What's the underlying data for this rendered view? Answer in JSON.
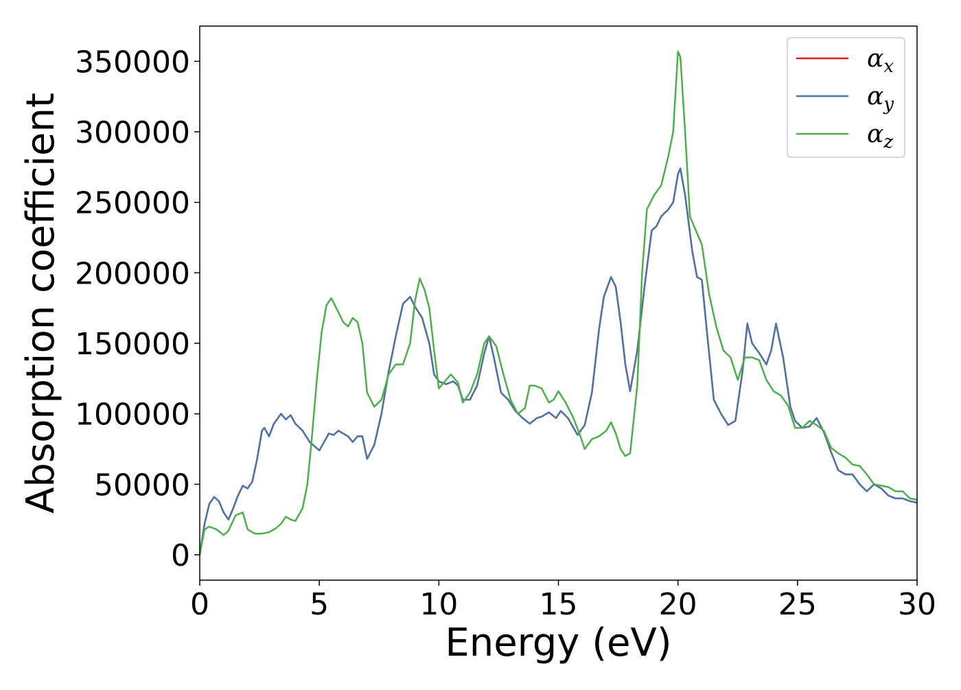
{
  "chart_data": {
    "type": "line",
    "title": "",
    "xlabel": "Energy (eV)",
    "ylabel": "Absorption coefficient",
    "xlim": [
      0,
      30
    ],
    "ylim": [
      -18000,
      375000
    ],
    "xticks": [
      0,
      5,
      10,
      15,
      20,
      25,
      30
    ],
    "yticks": [
      0,
      50000,
      100000,
      150000,
      200000,
      250000,
      300000,
      350000
    ],
    "grid": false,
    "legend_position": "top-right",
    "series": [
      {
        "name": "α",
        "subscript": "x",
        "color": "#e41a1c",
        "x": [
          0,
          0.2,
          0.4,
          0.6,
          0.8,
          1.0,
          1.2,
          1.4,
          1.6,
          1.8,
          2.0,
          2.2,
          2.4,
          2.6,
          2.7,
          2.9,
          3.1,
          3.4,
          3.6,
          3.8,
          4.0,
          4.3,
          4.6,
          5.0,
          5.2,
          5.4,
          5.6,
          5.8,
          6.0,
          6.2,
          6.4,
          6.6,
          6.8,
          7.0,
          7.3,
          7.6,
          7.9,
          8.2,
          8.5,
          8.8,
          9.0,
          9.3,
          9.6,
          9.8,
          10.0,
          10.3,
          10.6,
          10.8,
          11.0,
          11.3,
          11.6,
          11.9,
          12.1,
          12.3,
          12.6,
          12.9,
          13.2,
          13.5,
          13.8,
          14.1,
          14.3,
          14.6,
          14.9,
          15.1,
          15.4,
          15.8,
          16.1,
          16.4,
          16.7,
          16.9,
          17.2,
          17.4,
          17.6,
          17.8,
          18.0,
          18.3,
          18.6,
          18.9,
          19.1,
          19.3,
          19.6,
          19.8,
          20.0,
          20.1,
          20.3,
          20.6,
          20.8,
          21.0,
          21.2,
          21.5,
          21.8,
          22.1,
          22.4,
          22.7,
          22.9,
          23.1,
          23.4,
          23.7,
          23.9,
          24.1,
          24.4,
          24.7,
          24.9,
          25.2,
          25.5,
          25.8,
          26.1,
          26.4,
          26.7,
          27.0,
          27.3,
          27.6,
          27.9,
          28.2,
          28.5,
          28.8,
          29.1,
          29.4,
          29.7,
          30.0
        ],
        "y": [
          0,
          22000,
          36000,
          41000,
          38000,
          30000,
          25000,
          33000,
          42000,
          49000,
          47000,
          52000,
          68000,
          88000,
          90000,
          84000,
          93000,
          100000,
          96000,
          99000,
          93000,
          88000,
          80000,
          74000,
          80000,
          86000,
          85000,
          88000,
          86000,
          84000,
          80000,
          84000,
          84000,
          68000,
          78000,
          100000,
          130000,
          155000,
          178000,
          183000,
          176000,
          168000,
          150000,
          128000,
          123000,
          121000,
          123000,
          120000,
          110000,
          110000,
          120000,
          143000,
          155000,
          140000,
          115000,
          110000,
          102000,
          97000,
          93000,
          97000,
          98000,
          101000,
          97000,
          102000,
          97000,
          85000,
          92000,
          115000,
          160000,
          183000,
          197000,
          190000,
          165000,
          135000,
          116000,
          145000,
          190000,
          230000,
          233000,
          240000,
          245000,
          250000,
          270000,
          274000,
          255000,
          215000,
          197000,
          195000,
          160000,
          110000,
          100000,
          92000,
          95000,
          130000,
          164000,
          150000,
          143000,
          135000,
          145000,
          164000,
          140000,
          105000,
          95000,
          90000,
          91000,
          97000,
          87000,
          73000,
          60000,
          57000,
          57000,
          50000,
          45000,
          50000,
          47000,
          42000,
          40000,
          40000,
          38000,
          37000
        ]
      },
      {
        "name": "α",
        "subscript": "y",
        "color": "#4a77aa",
        "x": [
          0,
          0.2,
          0.4,
          0.6,
          0.8,
          1.0,
          1.2,
          1.4,
          1.6,
          1.8,
          2.0,
          2.2,
          2.4,
          2.6,
          2.7,
          2.9,
          3.1,
          3.4,
          3.6,
          3.8,
          4.0,
          4.3,
          4.6,
          5.0,
          5.2,
          5.4,
          5.6,
          5.8,
          6.0,
          6.2,
          6.4,
          6.6,
          6.8,
          7.0,
          7.3,
          7.6,
          7.9,
          8.2,
          8.5,
          8.8,
          9.0,
          9.3,
          9.6,
          9.8,
          10.0,
          10.3,
          10.6,
          10.8,
          11.0,
          11.3,
          11.6,
          11.9,
          12.1,
          12.3,
          12.6,
          12.9,
          13.2,
          13.5,
          13.8,
          14.1,
          14.3,
          14.6,
          14.9,
          15.1,
          15.4,
          15.8,
          16.1,
          16.4,
          16.7,
          16.9,
          17.2,
          17.4,
          17.6,
          17.8,
          18.0,
          18.3,
          18.6,
          18.9,
          19.1,
          19.3,
          19.6,
          19.8,
          20.0,
          20.1,
          20.3,
          20.6,
          20.8,
          21.0,
          21.2,
          21.5,
          21.8,
          22.1,
          22.4,
          22.7,
          22.9,
          23.1,
          23.4,
          23.7,
          23.9,
          24.1,
          24.4,
          24.7,
          24.9,
          25.2,
          25.5,
          25.8,
          26.1,
          26.4,
          26.7,
          27.0,
          27.3,
          27.6,
          27.9,
          28.2,
          28.5,
          28.8,
          29.1,
          29.4,
          29.7,
          30.0
        ],
        "y": [
          0,
          22000,
          36000,
          41000,
          38000,
          30000,
          25000,
          33000,
          42000,
          49000,
          47000,
          52000,
          68000,
          88000,
          90000,
          84000,
          93000,
          100000,
          96000,
          99000,
          93000,
          88000,
          80000,
          74000,
          80000,
          86000,
          85000,
          88000,
          86000,
          84000,
          80000,
          84000,
          84000,
          68000,
          78000,
          100000,
          130000,
          155000,
          178000,
          183000,
          176000,
          168000,
          150000,
          128000,
          123000,
          121000,
          123000,
          120000,
          110000,
          110000,
          120000,
          143000,
          155000,
          140000,
          115000,
          110000,
          102000,
          97000,
          93000,
          97000,
          98000,
          101000,
          97000,
          102000,
          97000,
          85000,
          92000,
          115000,
          160000,
          183000,
          197000,
          190000,
          165000,
          135000,
          116000,
          145000,
          190000,
          230000,
          233000,
          240000,
          245000,
          250000,
          270000,
          274000,
          255000,
          215000,
          197000,
          195000,
          160000,
          110000,
          100000,
          92000,
          95000,
          130000,
          164000,
          150000,
          143000,
          135000,
          145000,
          164000,
          140000,
          105000,
          95000,
          90000,
          91000,
          97000,
          87000,
          73000,
          60000,
          57000,
          57000,
          50000,
          45000,
          50000,
          47000,
          42000,
          40000,
          40000,
          38000,
          37000
        ]
      },
      {
        "name": "α",
        "subscript": "z",
        "color": "#4daf4a",
        "x": [
          0,
          0.2,
          0.4,
          0.7,
          1.0,
          1.2,
          1.5,
          1.8,
          2.0,
          2.3,
          2.6,
          2.9,
          3.2,
          3.4,
          3.6,
          3.8,
          4.0,
          4.3,
          4.5,
          4.7,
          4.9,
          5.1,
          5.3,
          5.5,
          5.8,
          6.0,
          6.2,
          6.4,
          6.6,
          6.8,
          7.0,
          7.3,
          7.6,
          7.9,
          8.2,
          8.5,
          8.8,
          9.0,
          9.2,
          9.4,
          9.6,
          9.8,
          10.0,
          10.2,
          10.5,
          10.8,
          11.0,
          11.3,
          11.6,
          11.9,
          12.1,
          12.4,
          12.7,
          13.0,
          13.3,
          13.6,
          13.8,
          14.0,
          14.3,
          14.6,
          14.8,
          15.0,
          15.3,
          15.6,
          15.9,
          16.1,
          16.4,
          16.7,
          17.0,
          17.2,
          17.4,
          17.6,
          17.8,
          18.0,
          18.3,
          18.5,
          18.7,
          19.0,
          19.3,
          19.6,
          19.8,
          20.0,
          20.1,
          20.3,
          20.5,
          20.8,
          21.0,
          21.3,
          21.6,
          21.9,
          22.2,
          22.5,
          22.8,
          23.1,
          23.4,
          23.7,
          24.0,
          24.3,
          24.6,
          24.9,
          25.2,
          25.5,
          25.8,
          26.1,
          26.4,
          26.7,
          27.0,
          27.3,
          27.6,
          27.9,
          28.2,
          28.5,
          28.8,
          29.1,
          29.4,
          29.7,
          30.0
        ],
        "y": [
          0,
          18000,
          20000,
          18000,
          14000,
          17000,
          28000,
          30000,
          18000,
          15000,
          15000,
          16000,
          19000,
          22000,
          27000,
          25000,
          24000,
          33000,
          50000,
          85000,
          125000,
          158000,
          177000,
          182000,
          172000,
          165000,
          162000,
          168000,
          165000,
          150000,
          115000,
          105000,
          110000,
          128000,
          135000,
          135000,
          150000,
          180000,
          196000,
          188000,
          175000,
          145000,
          118000,
          122000,
          128000,
          122000,
          108000,
          115000,
          128000,
          150000,
          155000,
          148000,
          128000,
          110000,
          100000,
          104000,
          120000,
          120000,
          118000,
          108000,
          110000,
          116000,
          108000,
          98000,
          85000,
          75000,
          82000,
          84000,
          88000,
          94000,
          86000,
          75000,
          70000,
          72000,
          120000,
          200000,
          245000,
          255000,
          262000,
          283000,
          300000,
          357000,
          353000,
          300000,
          240000,
          228000,
          220000,
          185000,
          162000,
          145000,
          140000,
          124000,
          140000,
          140000,
          138000,
          124000,
          116000,
          113000,
          106000,
          90000,
          90000,
          95000,
          92000,
          88000,
          76000,
          72000,
          69000,
          64000,
          63000,
          57000,
          50000,
          49000,
          48000,
          45000,
          45000,
          40000,
          39000
        ]
      }
    ]
  }
}
